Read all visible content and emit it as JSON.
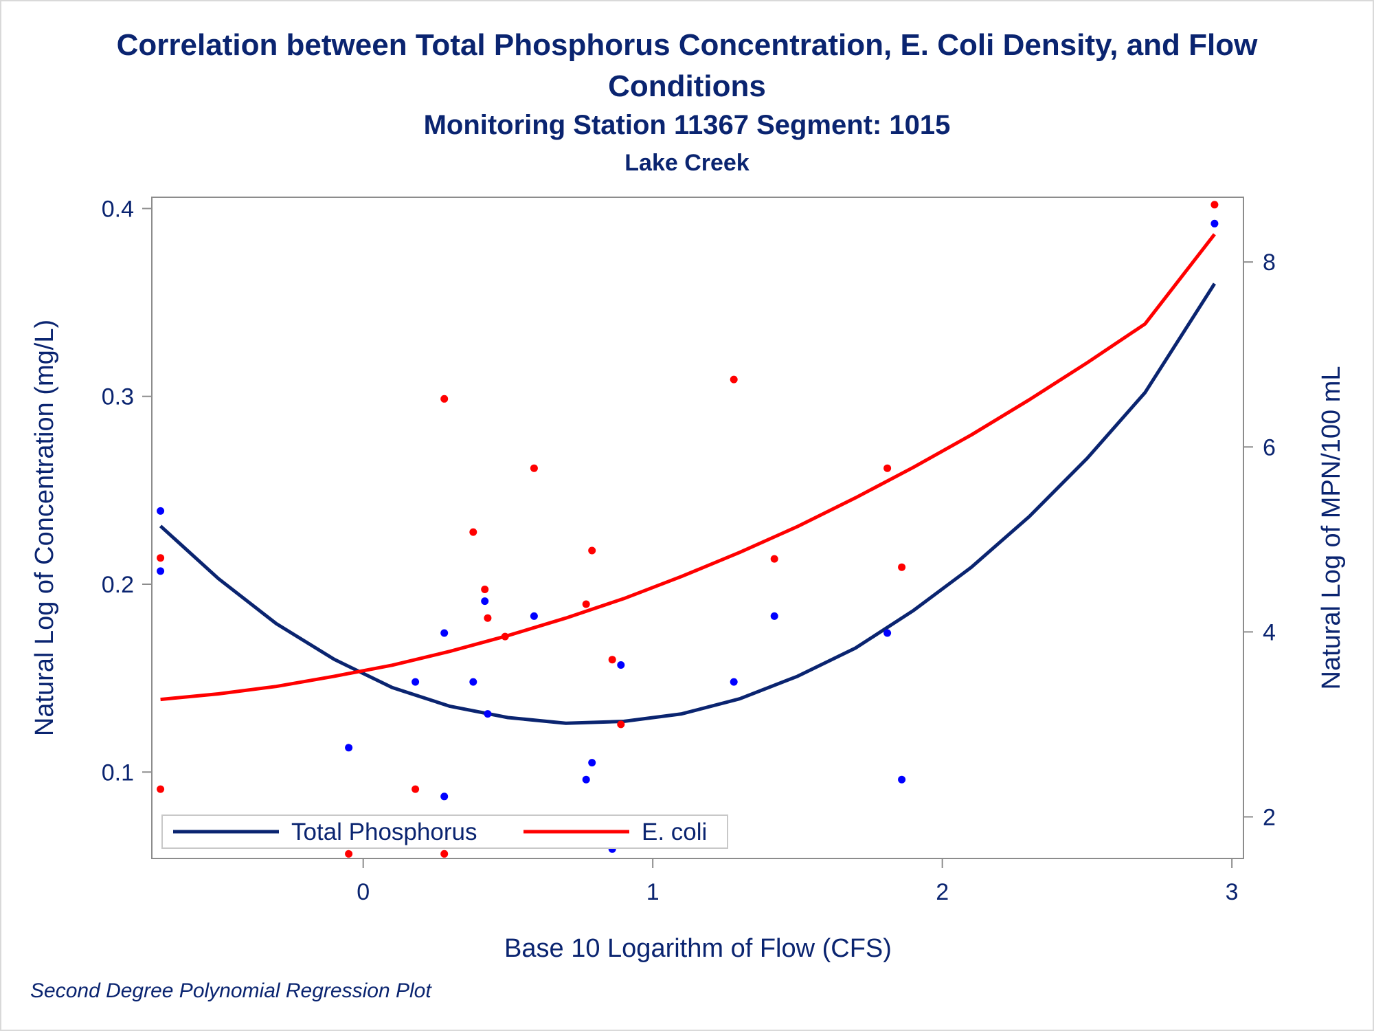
{
  "title_line1": "Correlation between Total Phosphorus Concentration, E. Coli Density, and Flow",
  "title_line2": "Conditions",
  "subtitle": "Monitoring Station 11367 Segment: 1015",
  "subtitle2": "Lake Creek",
  "footnote": "Second Degree Polynomial Regression Plot",
  "colors": {
    "text": "#0a2470",
    "phosphorus_line": "#0a2470",
    "phosphorus_points": "#0000ff",
    "ecoli": "#ff0000",
    "axis": "#8c8c8c"
  },
  "chart_data": {
    "type": "scatter",
    "xlabel": "Base 10 Logarithm of Flow (CFS)",
    "ylabel_left": "Natural Log of Concentration (mg/L)",
    "ylabel_right": "Natural Log of MPN/100 mL",
    "xlim": [
      -0.73,
      3.04
    ],
    "ylim_left": [
      0.054,
      0.406
    ],
    "ylim_right": [
      1.55,
      8.7
    ],
    "x_ticks": [
      0,
      1,
      2,
      3
    ],
    "y_ticks_left": [
      0.1,
      0.2,
      0.3,
      0.4
    ],
    "y_ticks_right": [
      2,
      4,
      6,
      8
    ],
    "legend_position": "bottom-left inside",
    "series": [
      {
        "name": "Total Phosphorus",
        "axis": "left",
        "points": [
          [
            -0.7,
            0.239
          ],
          [
            -0.7,
            0.207
          ],
          [
            -0.05,
            0.113
          ],
          [
            0.18,
            0.148
          ],
          [
            0.28,
            0.174
          ],
          [
            0.28,
            0.087
          ],
          [
            0.38,
            0.148
          ],
          [
            0.42,
            0.191
          ],
          [
            0.43,
            0.131
          ],
          [
            0.59,
            0.183
          ],
          [
            0.77,
            0.096
          ],
          [
            0.79,
            0.105
          ],
          [
            0.86,
            0.059
          ],
          [
            0.89,
            0.157
          ],
          [
            1.28,
            0.148
          ],
          [
            1.42,
            0.183
          ],
          [
            1.81,
            0.174
          ],
          [
            1.86,
            0.096
          ],
          [
            2.94,
            0.392
          ]
        ],
        "curve": [
          [
            -0.7,
            0.231
          ],
          [
            -0.5,
            0.203
          ],
          [
            -0.3,
            0.179
          ],
          [
            -0.1,
            0.16
          ],
          [
            0.1,
            0.145
          ],
          [
            0.3,
            0.135
          ],
          [
            0.5,
            0.129
          ],
          [
            0.7,
            0.126
          ],
          [
            0.9,
            0.127
          ],
          [
            1.1,
            0.131
          ],
          [
            1.3,
            0.139
          ],
          [
            1.5,
            0.151
          ],
          [
            1.7,
            0.166
          ],
          [
            1.9,
            0.186
          ],
          [
            2.1,
            0.209
          ],
          [
            2.3,
            0.236
          ],
          [
            2.5,
            0.267
          ],
          [
            2.7,
            0.302
          ],
          [
            2.94,
            0.36
          ]
        ]
      },
      {
        "name": "E. coli",
        "axis": "right",
        "points": [
          [
            -0.7,
            4.8
          ],
          [
            -0.7,
            2.3
          ],
          [
            -0.05,
            1.6
          ],
          [
            0.18,
            2.3
          ],
          [
            0.28,
            6.52
          ],
          [
            0.28,
            1.6
          ],
          [
            0.38,
            5.08
          ],
          [
            0.42,
            4.46
          ],
          [
            0.43,
            4.15
          ],
          [
            0.49,
            3.95
          ],
          [
            0.59,
            5.77
          ],
          [
            0.77,
            4.3
          ],
          [
            0.79,
            4.88
          ],
          [
            0.86,
            3.7
          ],
          [
            0.89,
            3.0
          ],
          [
            1.28,
            6.73
          ],
          [
            1.42,
            4.79
          ],
          [
            1.81,
            5.77
          ],
          [
            1.86,
            4.7
          ],
          [
            2.94,
            8.62
          ]
        ],
        "curve": [
          [
            -0.7,
            3.27
          ],
          [
            -0.5,
            3.33
          ],
          [
            -0.3,
            3.41
          ],
          [
            -0.1,
            3.52
          ],
          [
            0.1,
            3.64
          ],
          [
            0.3,
            3.79
          ],
          [
            0.5,
            3.96
          ],
          [
            0.7,
            4.15
          ],
          [
            0.9,
            4.36
          ],
          [
            1.1,
            4.6
          ],
          [
            1.3,
            4.86
          ],
          [
            1.5,
            5.14
          ],
          [
            1.7,
            5.45
          ],
          [
            1.9,
            5.78
          ],
          [
            2.1,
            6.13
          ],
          [
            2.3,
            6.51
          ],
          [
            2.5,
            6.91
          ],
          [
            2.7,
            7.33
          ],
          [
            2.94,
            8.3
          ]
        ]
      }
    ]
  }
}
